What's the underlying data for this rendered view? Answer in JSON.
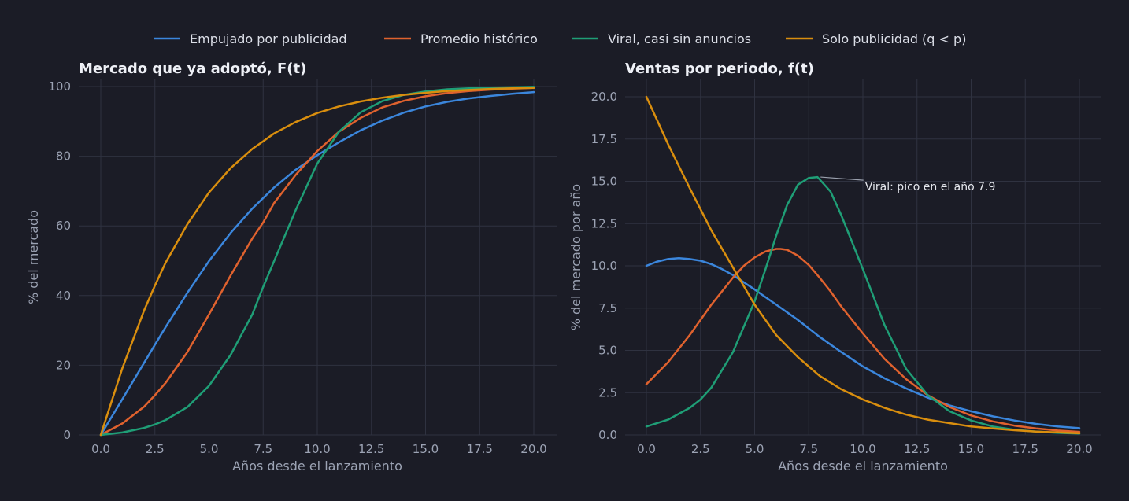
{
  "colors": {
    "background": "#1b1c26",
    "grid": "#2f3240",
    "tick_text": "#9ca3b4",
    "title_text": "#eef0f6",
    "legend_text": "#dcdfe8",
    "annotation_text": "#e6e8ee",
    "annotation_line": "#9aa0ad"
  },
  "legend": {
    "position": "top-center",
    "entries": [
      {
        "label": "Empujado por publicidad",
        "color": "#3b86dc"
      },
      {
        "label": "Promedio histórico",
        "color": "#e0622e"
      },
      {
        "label": "Viral, casi sin anuncios",
        "color": "#1f9e76"
      },
      {
        "label": "Solo publicidad (q < p)",
        "color": "#d98e0e"
      }
    ]
  },
  "chart_data": [
    {
      "type": "line",
      "title": "Mercado que ya adoptó, F(t)",
      "xlabel": "Años desde el lanzamiento",
      "ylabel": "% del mercado",
      "xlim": [
        -1,
        21
      ],
      "ylim": [
        0,
        102
      ],
      "xticks": [
        "0.0",
        "2.5",
        "5.0",
        "7.5",
        "10.0",
        "12.5",
        "15.0",
        "17.5",
        "20.0"
      ],
      "yticks": [
        "0",
        "20",
        "40",
        "60",
        "80",
        "100"
      ],
      "grid": true,
      "series": [
        {
          "name": "Empujado por publicidad",
          "color": "#3b86dc",
          "x": [
            0,
            1,
            2,
            2.5,
            3,
            4,
            5,
            6,
            7,
            7.5,
            8,
            9,
            10,
            11,
            12,
            13,
            14,
            15,
            16,
            17,
            18,
            19,
            20
          ],
          "y": [
            0,
            10.3,
            20.7,
            25.9,
            31.0,
            40.8,
            49.9,
            58.0,
            65.0,
            68.0,
            71.0,
            76.1,
            80.3,
            84.0,
            87.4,
            90.2,
            92.5,
            94.3,
            95.6,
            96.6,
            97.3,
            97.9,
            98.4
          ]
        },
        {
          "name": "Promedio histórico",
          "color": "#e0622e",
          "x": [
            0,
            1,
            2,
            2.5,
            3,
            4,
            5,
            6,
            7,
            7.5,
            8,
            9,
            10,
            11,
            12,
            13,
            14,
            15,
            16,
            17,
            18,
            19,
            20
          ],
          "y": [
            0,
            3.3,
            8.1,
            11.4,
            15.0,
            23.8,
            34.6,
            45.8,
            56.4,
            61.0,
            66.5,
            74.6,
            81.5,
            87.0,
            91.0,
            94.0,
            95.9,
            97.2,
            98.1,
            98.7,
            99.1,
            99.4,
            99.6
          ]
        },
        {
          "name": "Viral, casi sin anuncios",
          "color": "#1f9e76",
          "x": [
            0,
            1,
            2,
            2.5,
            3,
            4,
            5,
            6,
            7,
            7.5,
            8,
            9,
            10,
            11,
            12,
            13,
            14,
            15,
            16,
            17,
            18,
            19,
            20
          ],
          "y": [
            0,
            0.7,
            2.0,
            3.0,
            4.3,
            8.0,
            14.1,
            23.0,
            34.6,
            42.5,
            49.8,
            64.5,
            77.9,
            87.0,
            92.6,
            95.8,
            97.6,
            98.6,
            99.2,
            99.5,
            99.7,
            99.8,
            99.9
          ]
        },
        {
          "name": "Solo publicidad (q < p)",
          "color": "#d98e0e",
          "x": [
            0,
            1,
            2,
            2.5,
            3,
            4,
            5,
            6,
            7,
            7.5,
            8,
            9,
            10,
            11,
            12,
            13,
            14,
            15,
            16,
            17,
            18,
            19,
            20
          ],
          "y": [
            0,
            19.2,
            35.7,
            42.9,
            49.5,
            60.5,
            69.6,
            76.6,
            82.1,
            84.3,
            86.5,
            89.8,
            92.4,
            94.3,
            95.7,
            96.8,
            97.6,
            98.2,
            98.7,
            99.0,
            99.3,
            99.5,
            99.6
          ]
        }
      ]
    },
    {
      "type": "line",
      "title": "Ventas por periodo, f(t)",
      "xlabel": "Años desde el lanzamiento",
      "ylabel": "% del mercado por año",
      "xlim": [
        -1,
        21
      ],
      "ylim": [
        0,
        21
      ],
      "xticks": [
        "0.0",
        "2.5",
        "5.0",
        "7.5",
        "10.0",
        "12.5",
        "15.0",
        "17.5",
        "20.0"
      ],
      "yticks": [
        "0.0",
        "2.5",
        "5.0",
        "7.5",
        "10.0",
        "12.5",
        "15.0",
        "17.5",
        "20.0"
      ],
      "grid": true,
      "annotation": {
        "text": "Viral: pico en el año 7.9",
        "x": 7.9,
        "y": 15.3,
        "text_x": 10.1,
        "text_y": 14.6
      },
      "series": [
        {
          "name": "Empujado por publicidad",
          "color": "#3b86dc",
          "x": [
            0,
            0.5,
            1,
            1.5,
            2,
            2.5,
            3,
            3.5,
            4,
            5,
            6,
            7,
            8,
            9,
            10,
            11,
            12,
            13,
            14,
            15,
            16,
            17,
            18,
            19,
            20
          ],
          "y": [
            10.0,
            10.25,
            10.4,
            10.45,
            10.4,
            10.3,
            10.1,
            9.8,
            9.45,
            8.6,
            7.7,
            6.8,
            5.8,
            4.9,
            4.05,
            3.35,
            2.75,
            2.2,
            1.75,
            1.4,
            1.1,
            0.85,
            0.65,
            0.5,
            0.4
          ]
        },
        {
          "name": "Promedio histórico",
          "color": "#e0622e",
          "x": [
            0,
            1,
            2,
            3,
            4,
            4.5,
            5,
            5.5,
            6,
            6.2,
            6.5,
            7,
            7.5,
            8,
            8.5,
            9,
            10,
            11,
            12,
            13,
            14,
            15,
            16,
            17,
            18,
            19,
            20
          ],
          "y": [
            3.0,
            4.3,
            5.9,
            7.7,
            9.3,
            10.0,
            10.5,
            10.85,
            11.0,
            11.0,
            10.95,
            10.6,
            10.05,
            9.3,
            8.5,
            7.6,
            6.0,
            4.5,
            3.3,
            2.35,
            1.65,
            1.15,
            0.8,
            0.55,
            0.38,
            0.26,
            0.18
          ]
        },
        {
          "name": "Viral, casi sin anuncios",
          "color": "#1f9e76",
          "x": [
            0,
            1,
            2,
            2.5,
            3,
            4,
            5,
            5.5,
            6,
            6.5,
            7,
            7.5,
            7.9,
            8.5,
            9,
            9.5,
            10,
            11,
            12,
            13,
            14,
            15,
            16,
            17,
            18,
            19,
            20
          ],
          "y": [
            0.5,
            0.9,
            1.6,
            2.1,
            2.8,
            4.9,
            7.9,
            9.8,
            11.8,
            13.6,
            14.8,
            15.2,
            15.25,
            14.4,
            13.0,
            11.4,
            9.8,
            6.5,
            3.9,
            2.35,
            1.4,
            0.85,
            0.5,
            0.3,
            0.2,
            0.12,
            0.08
          ]
        },
        {
          "name": "Solo publicidad (q < p)",
          "color": "#d98e0e",
          "x": [
            0,
            1,
            2,
            3,
            4,
            5,
            6,
            7,
            8,
            9,
            10,
            11,
            12,
            13,
            14,
            15,
            16,
            17,
            18,
            19,
            20
          ],
          "y": [
            20.0,
            17.2,
            14.6,
            12.1,
            9.9,
            7.7,
            5.9,
            4.6,
            3.5,
            2.7,
            2.1,
            1.6,
            1.2,
            0.9,
            0.7,
            0.5,
            0.38,
            0.28,
            0.2,
            0.15,
            0.1
          ]
        }
      ]
    }
  ]
}
